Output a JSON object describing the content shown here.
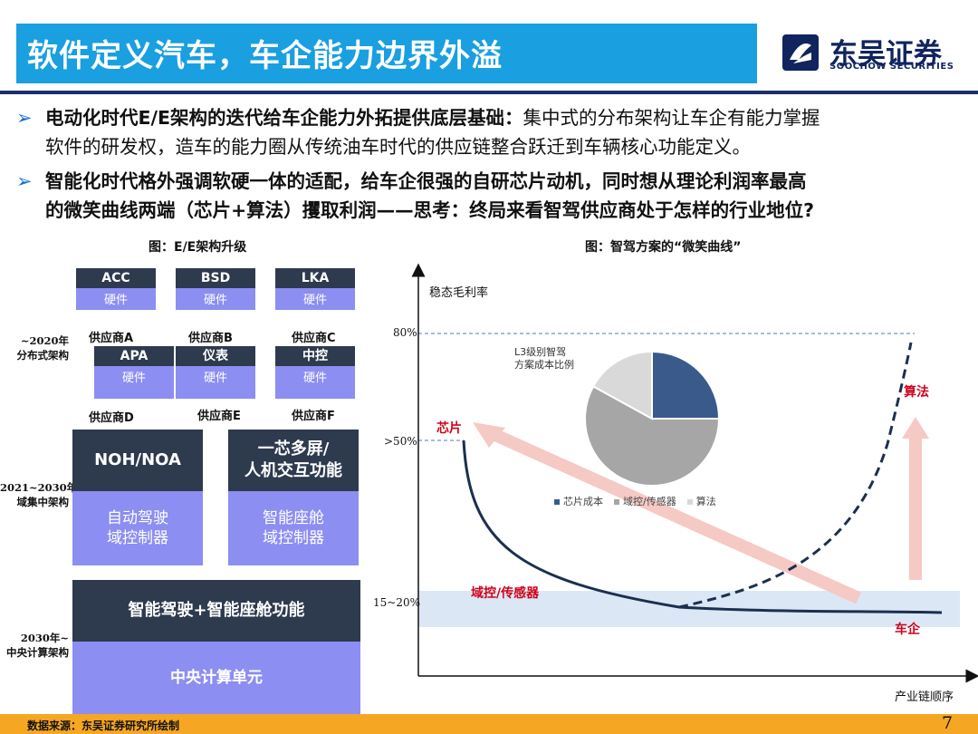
{
  "header": {
    "title": "软件定义汽车，车企能力边界外溢",
    "logo_cn": "东吴证券",
    "logo_en": "SOOCHOW SECURITIES"
  },
  "bullets": [
    {
      "bold": "电动化时代E/E架构的迭代给车企能力外拓提供底层基础：",
      "text1": "集中式的分布架构让车企有能力掌握",
      "text2": "软件的研发权，造车的能力圈从传统油车时代的供应链整合跃迁到车辆核心功能定义。"
    },
    {
      "line1": "智能化时代格外强调软硬一体的适配，给车企很强的自研芯片动机，同时想从理论利润率最高",
      "line2": "的微笑曲线两端（芯片+算法）攫取利润——思考：终局来看智驾供应商处于怎样的行业地位?"
    }
  ],
  "left_figure": {
    "caption": "图：E/E架构升级",
    "eras": [
      "~2020年\n分布式架构",
      "2021~2030年\n域集中架构",
      "2030年~\n中央计算架构"
    ],
    "ecu_row1": [
      {
        "name": "ACC",
        "hw": "硬件",
        "supplier": "供应商A"
      },
      {
        "name": "BSD",
        "hw": "硬件",
        "supplier": "供应商B"
      },
      {
        "name": "LKA",
        "hw": "硬件",
        "supplier": "供应商C"
      }
    ],
    "ecu_row2": [
      {
        "name": "APA",
        "hw": "硬件",
        "supplier": "供应商D"
      },
      {
        "name": "仪表",
        "hw": "硬件",
        "supplier": "供应商E"
      },
      {
        "name": "中控",
        "hw": "硬件",
        "supplier": "供应商F"
      }
    ],
    "domain": [
      {
        "top": "NOH/NOA",
        "bottom": "自动驾驶\n域控制器"
      },
      {
        "top": "一芯多屏/\n人机交互功能",
        "bottom": "智能座舱\n域控制器"
      }
    ],
    "central": {
      "top": "智能驾驶+智能座舱功能",
      "bottom": "中央计算单元"
    }
  },
  "right_figure": {
    "caption": "图：智驾方案的“微笑曲线”",
    "ylabel": "稳态毛利率",
    "xlabel": "产业链顺序",
    "y_ticks": [
      "80%",
      ">50%",
      "15~20%"
    ],
    "labels": {
      "chip": "芯片",
      "algo": "算法",
      "domain": "域控/传感器",
      "oem": "车企"
    },
    "colors": {
      "curve": "#1b2f4f",
      "red_label": "#d0021b",
      "arrow": "#f5c9c4",
      "band": "#dbe7f5",
      "dash_line": "#4a7bc4"
    }
  },
  "chart_data": {
    "type": "pie",
    "title": "L3级别智驾\n方案成本比例",
    "categories": [
      "芯片成本",
      "域控/传感器",
      "算法"
    ],
    "values": [
      25,
      58,
      17
    ],
    "colors": [
      "#3a5a8c",
      "#a6a6a6",
      "#d9d9d9"
    ],
    "legend": "bottom"
  },
  "footer": {
    "source": "数据来源：东吴证券研究所绘制",
    "page": "7"
  }
}
